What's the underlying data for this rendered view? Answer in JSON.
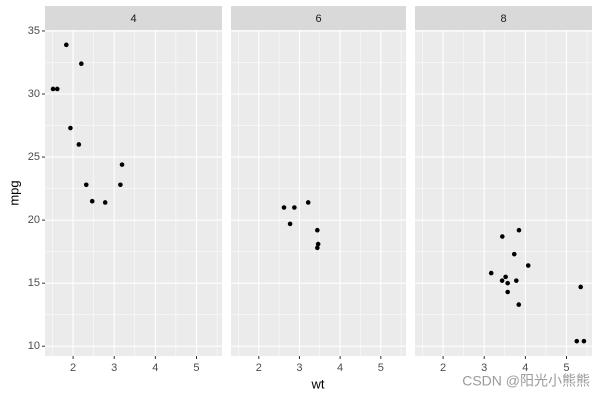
{
  "chart_data": [
    {
      "type": "scatter",
      "title": "4",
      "y_label": "mpg",
      "x": [
        2.32,
        3.19,
        3.15,
        2.2,
        1.615,
        1.835,
        2.465,
        1.935,
        2.14,
        1.513,
        2.78
      ],
      "values": [
        22.8,
        24.4,
        22.8,
        32.4,
        30.4,
        33.9,
        21.5,
        27.3,
        26.0,
        30.4,
        21.4
      ],
      "color": "#000000",
      "xlim": [
        1.317,
        5.62
      ],
      "ylim": [
        9.225,
        35.075
      ],
      "xticks": [
        2,
        3,
        4,
        5
      ],
      "yticks": [
        10,
        15,
        20,
        25,
        30,
        35
      ],
      "grid": true
    },
    {
      "type": "scatter",
      "title": "6",
      "x_label": "wt",
      "x": [
        2.62,
        2.875,
        3.215,
        3.46,
        3.44,
        3.44,
        2.77
      ],
      "values": [
        21.0,
        21.0,
        21.4,
        18.1,
        19.2,
        17.8,
        19.7
      ],
      "color": "#000000",
      "xlim": [
        1.317,
        5.62
      ],
      "ylim": [
        9.225,
        35.075
      ],
      "xticks": [
        2,
        3,
        4,
        5
      ],
      "yticks": [
        10,
        15,
        20,
        25,
        30,
        35
      ],
      "grid": true
    },
    {
      "type": "scatter",
      "title": "8",
      "x": [
        3.44,
        3.57,
        4.07,
        3.73,
        3.78,
        5.25,
        5.424,
        5.345,
        3.52,
        3.435,
        3.84,
        3.845,
        3.17,
        3.57
      ],
      "values": [
        18.7,
        14.3,
        16.4,
        17.3,
        15.2,
        10.4,
        10.4,
        14.7,
        15.5,
        15.2,
        13.3,
        19.2,
        15.8,
        15.0
      ],
      "color": "#000000",
      "xlim": [
        1.317,
        5.62
      ],
      "ylim": [
        9.225,
        35.075
      ],
      "xticks": [
        2,
        3,
        4,
        5
      ],
      "yticks": [
        10,
        15,
        20,
        25,
        30,
        35
      ],
      "grid": true
    }
  ],
  "watermark": "CSDN @阳光小熊熊"
}
